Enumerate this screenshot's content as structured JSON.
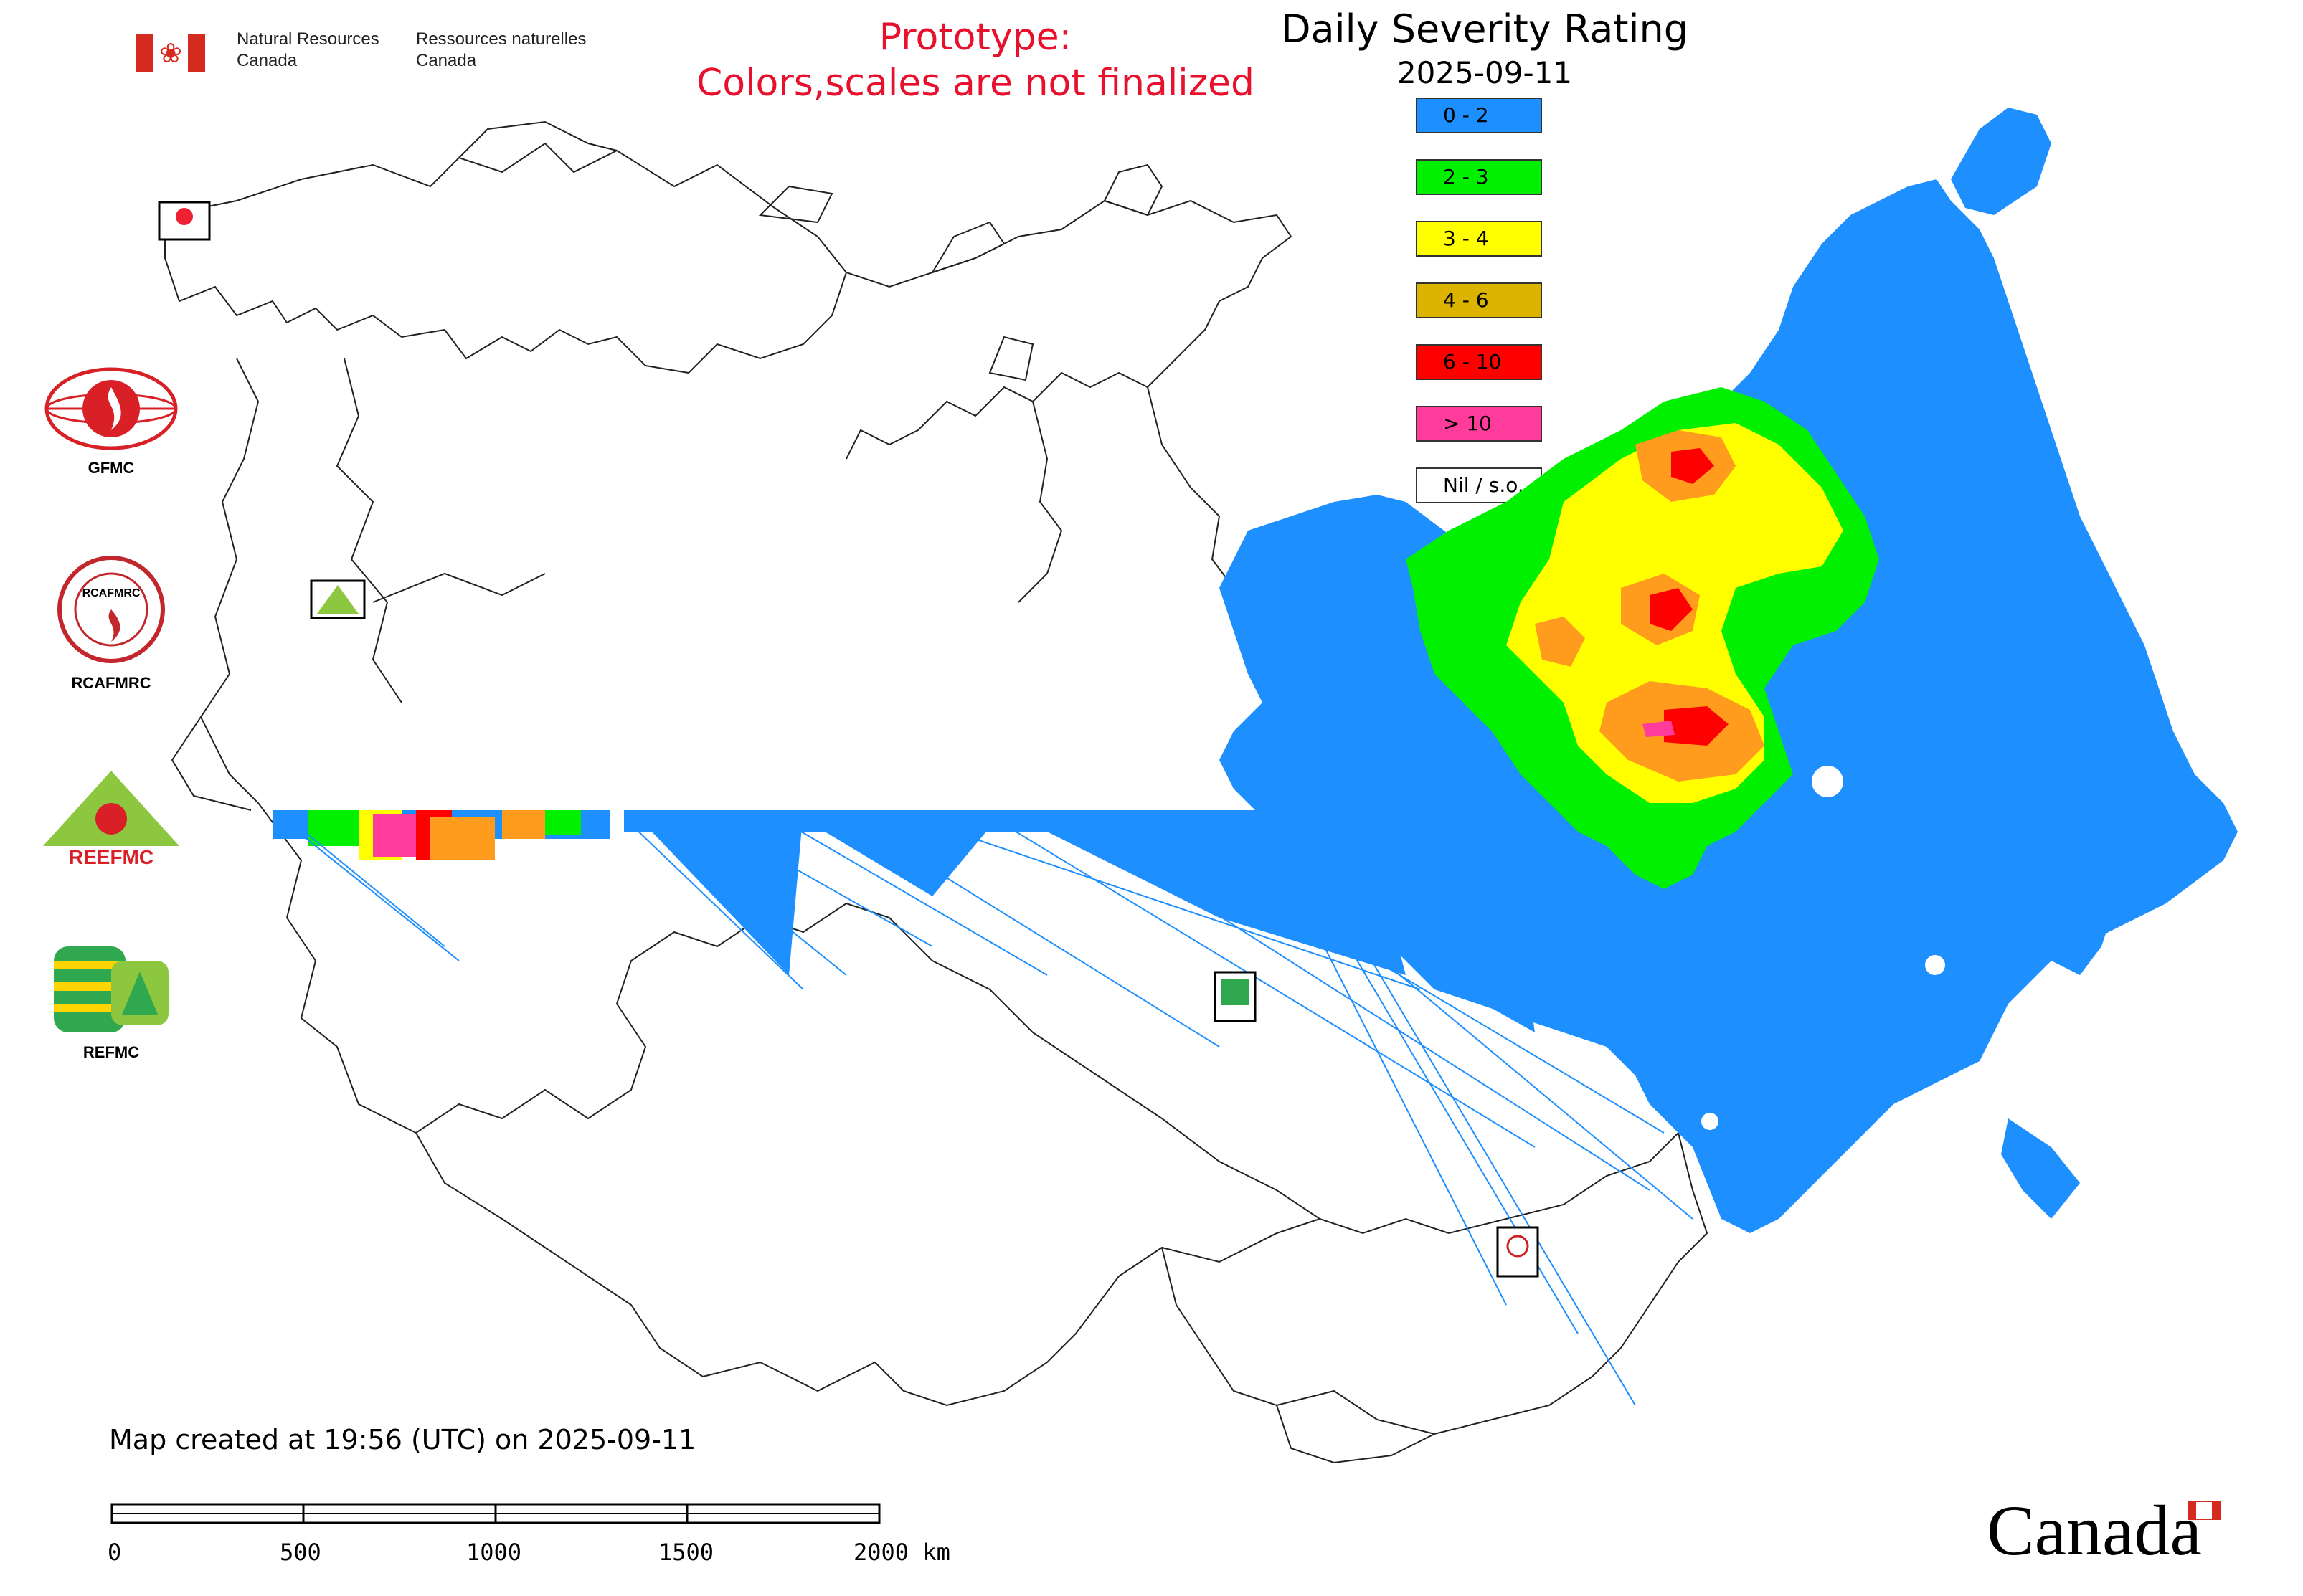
{
  "header": {
    "gov_en_line1": "Natural Resources",
    "gov_en_line2": "Canada",
    "gov_fr_line1": "Ressources naturelles",
    "gov_fr_line2": "Canada",
    "prototype_line1": "Prototype:",
    "prototype_line2": "Colors,scales are not finalized",
    "title": "Daily Severity Rating",
    "date": "2025-09-11"
  },
  "legend": [
    {
      "label": "0 - 2",
      "color": "#1e8fff"
    },
    {
      "label": "2 - 3",
      "color": "#00f000"
    },
    {
      "label": "3 - 4",
      "color": "#ffff00"
    },
    {
      "label": "4 - 6",
      "color": "#dcb400"
    },
    {
      "label": "6 - 10",
      "color": "#ff0000"
    },
    {
      "label": "> 10",
      "color": "#ff3c9b"
    },
    {
      "label": "Nil / s.o.",
      "color": "#ffffff"
    }
  ],
  "logos": {
    "gfmc": "GFMC",
    "rcafmrc": "RCAFMRC",
    "reefmc": "REEFMC",
    "refmc": "REFMC",
    "reefmc_text": "REEFMC",
    "rcafmrc_text": "RCAFMRC"
  },
  "footer": {
    "created": "Map created at 19:56 (UTC) on 2025-09-11",
    "scale_ticks": [
      "0",
      "500",
      "1000",
      "1500",
      "2000 km"
    ],
    "wordmark": "Canada"
  },
  "icons": {
    "flag": "canada-flag-icon",
    "maple_leaf": "maple-leaf-icon"
  }
}
